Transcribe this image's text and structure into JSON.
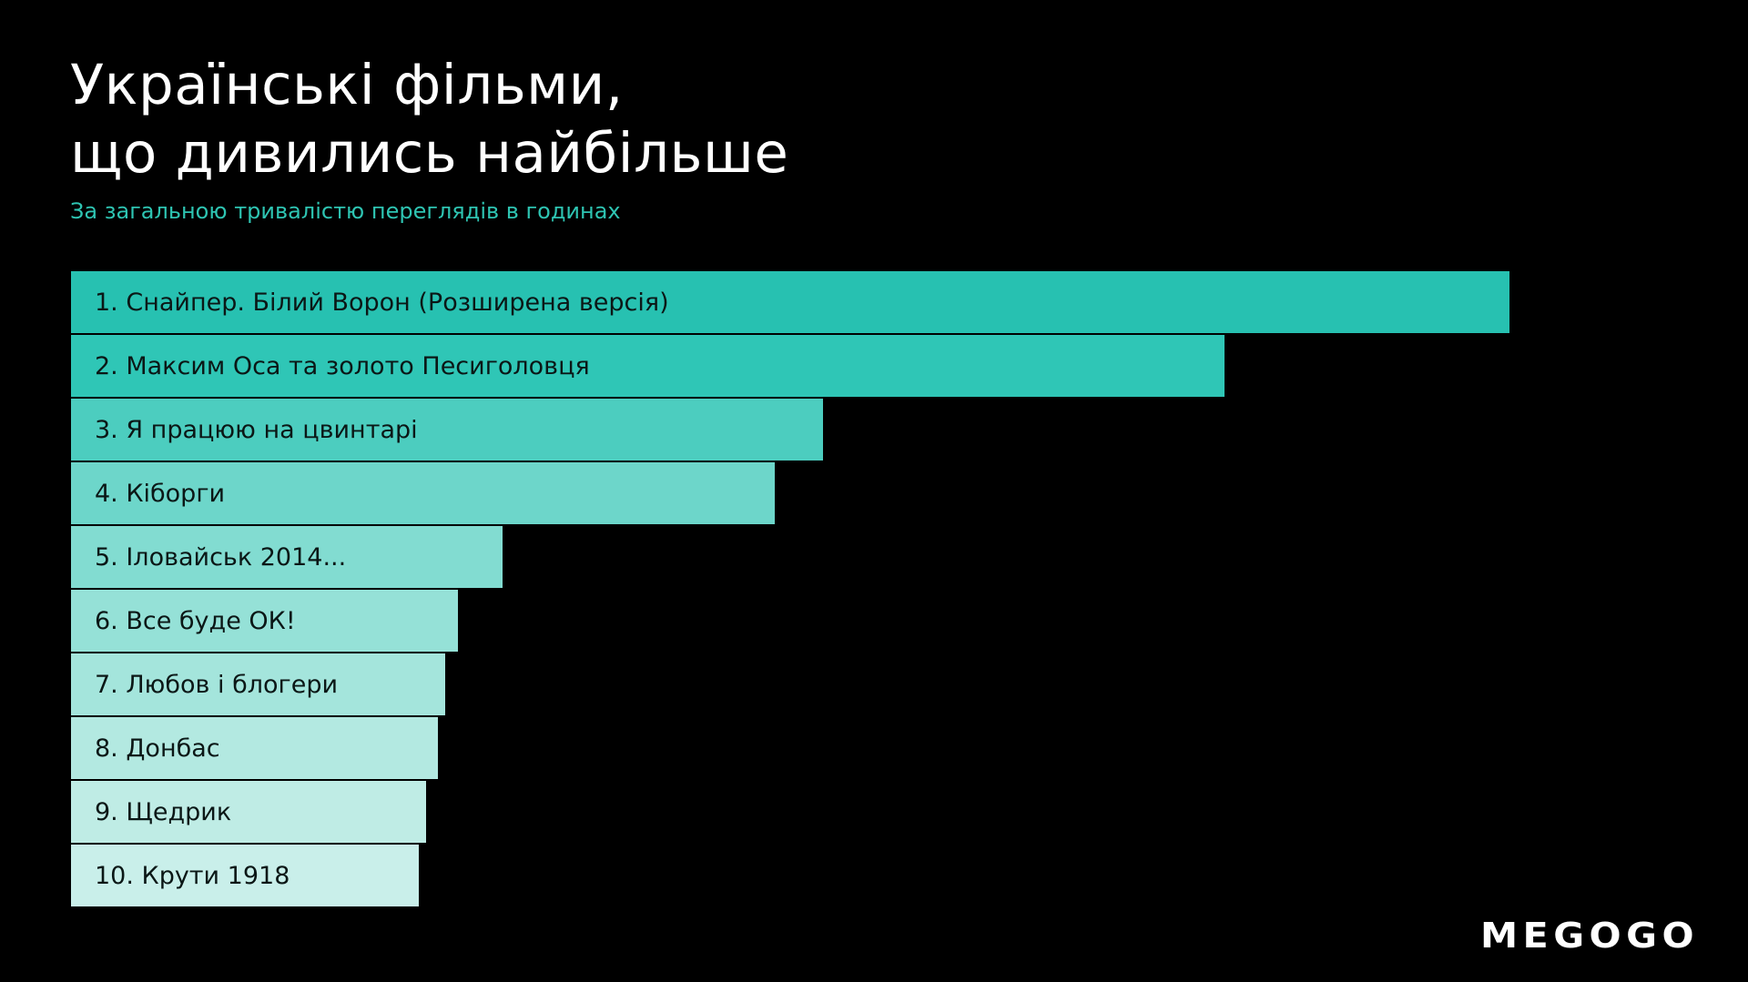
{
  "chart_data": {
    "type": "bar",
    "orientation": "horizontal",
    "title_lines": [
      "Українські фільми,",
      "що дивились найбільше"
    ],
    "subtitle": "За загальною тривалістю переглядів в годинах",
    "categories": [
      "1. Снайпер. Білий Ворон (Розширена версія)",
      "2. Максим Оса та золото Песиголовця",
      "3. Я працюю на цвинтарі",
      "4. Кіборги",
      "5. Іловайськ 2014...",
      "6. Все буде ОК!",
      "7. Любов і блогери",
      "8. Донбас",
      "9. Щедрик",
      "10. Крути 1918"
    ],
    "values": [
      100,
      80.2,
      52.3,
      48.9,
      30,
      26.9,
      26,
      25.5,
      24.7,
      24.2
    ],
    "xlim": [
      0,
      100
    ],
    "colors": [
      "#27c1b1",
      "#2fc6b6",
      "#4ccdbf",
      "#6dd6ca",
      "#82dcd1",
      "#95e1d7",
      "#a4e5dc",
      "#b3e9e1",
      "#bfece5",
      "#c9efea"
    ],
    "grid": false,
    "legend": "none"
  },
  "brand": {
    "logo_text": "MEGOGO",
    "logo_color": "#ffffff"
  },
  "background_color": "#000000"
}
